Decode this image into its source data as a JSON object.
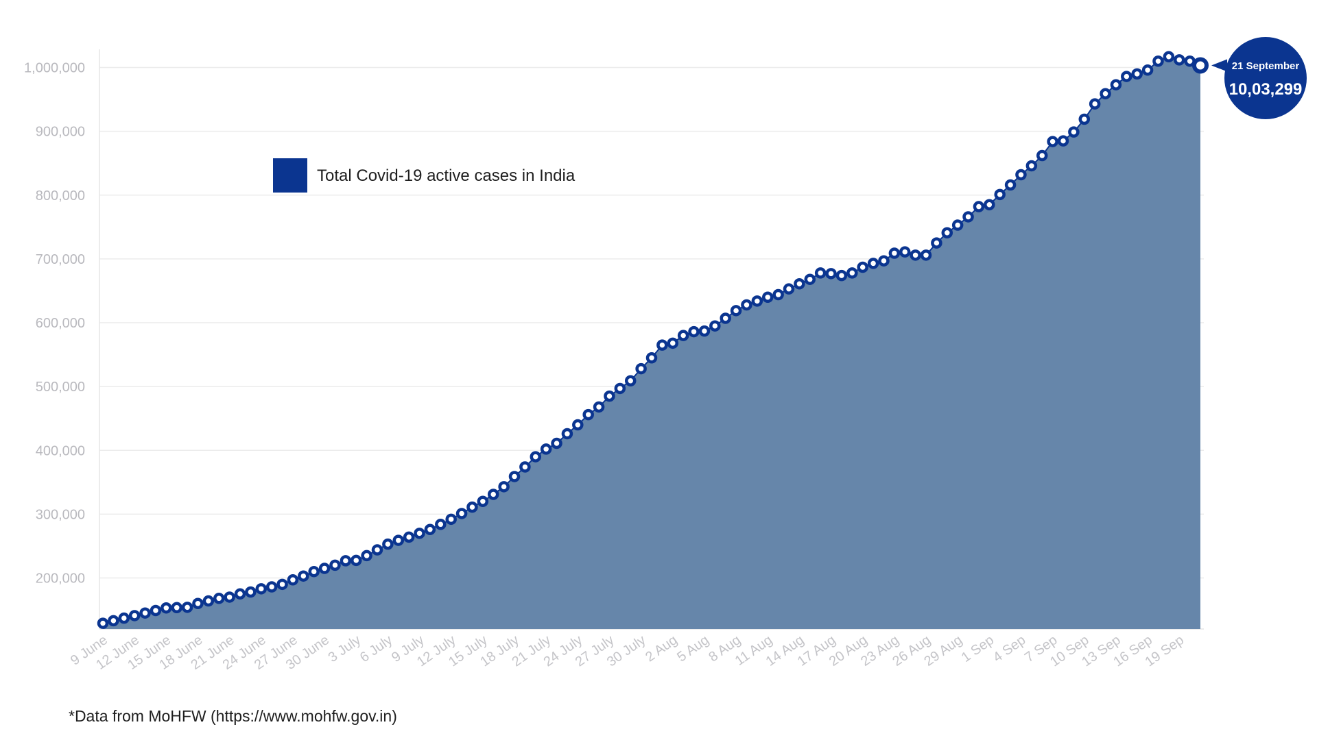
{
  "chart_data": {
    "type": "area",
    "series": [
      {
        "name": "Total Covid-19 active cases in India",
        "color": "#0b3590",
        "fill_color": "#6686aa",
        "x": [
          "9 June",
          "10 June",
          "11 June",
          "12 June",
          "13 June",
          "14 June",
          "15 June",
          "16 June",
          "17 June",
          "18 June",
          "19 June",
          "20 June",
          "21 June",
          "22 June",
          "23 June",
          "24 June",
          "25 June",
          "26 June",
          "27 June",
          "28 June",
          "29 June",
          "30 June",
          "1 July",
          "2 July",
          "3 July",
          "4 July",
          "5 July",
          "6 July",
          "7 July",
          "8 July",
          "9 July",
          "10 July",
          "11 July",
          "12 July",
          "13 July",
          "14 July",
          "15 July",
          "16 July",
          "17 July",
          "18 July",
          "19 July",
          "20 July",
          "21 July",
          "22 July",
          "23 July",
          "24 July",
          "25 July",
          "26 July",
          "27 July",
          "28 July",
          "29 July",
          "30 July",
          "31 July",
          "1 Aug",
          "2 Aug",
          "3 Aug",
          "4 Aug",
          "5 Aug",
          "6 Aug",
          "7 Aug",
          "8 Aug",
          "9 Aug",
          "10 Aug",
          "11 Aug",
          "12 Aug",
          "13 Aug",
          "14 Aug",
          "15 Aug",
          "16 Aug",
          "17 Aug",
          "18 Aug",
          "19 Aug",
          "20 Aug",
          "21 Aug",
          "22 Aug",
          "23 Aug",
          "24 Aug",
          "25 Aug",
          "26 Aug",
          "27 Aug",
          "28 Aug",
          "29 Aug",
          "30 Aug",
          "31 Aug",
          "1 Sep",
          "2 Sep",
          "3 Sep",
          "4 Sep",
          "5 Sep",
          "6 Sep",
          "7 Sep",
          "8 Sep",
          "9 Sep",
          "10 Sep",
          "11 Sep",
          "12 Sep",
          "13 Sep",
          "14 Sep",
          "15 Sep",
          "16 Sep",
          "17 Sep",
          "18 Sep",
          "19 Sep",
          "20 Sep",
          "21 Sep"
        ],
        "values": [
          129000,
          133000,
          137000,
          141000,
          145000,
          149000,
          153000,
          153500,
          154000,
          160000,
          164000,
          168000,
          170000,
          175000,
          178000,
          183000,
          186000,
          190000,
          197000,
          203000,
          210000,
          215000,
          220000,
          227000,
          227500,
          235000,
          244000,
          253000,
          259000,
          264000,
          270000,
          276000,
          284000,
          292000,
          301000,
          311000,
          320000,
          331000,
          343000,
          359000,
          374000,
          390000,
          402000,
          411000,
          426000,
          440000,
          456000,
          468000,
          485000,
          497000,
          509000,
          528000,
          545000,
          565000,
          568000,
          580000,
          586000,
          587000,
          595000,
          607000,
          619000,
          628000,
          634000,
          640000,
          644000,
          653000,
          661000,
          668000,
          678000,
          677000,
          674000,
          678000,
          687000,
          693000,
          697000,
          709000,
          711000,
          706000,
          706000,
          725000,
          741000,
          753000,
          766000,
          782000,
          785000,
          801000,
          816000,
          832000,
          846000,
          862000,
          884000,
          885000,
          899000,
          919000,
          943000,
          959000,
          973000,
          986000,
          990000,
          996000,
          1010000,
          1017000,
          1012000,
          1010000,
          1003299
        ]
      }
    ],
    "ylim": [
      120000,
      1050000
    ],
    "yticks": [
      200000,
      300000,
      400000,
      500000,
      600000,
      700000,
      800000,
      900000,
      1000000
    ],
    "ytick_labels": [
      "200,000",
      "300,000",
      "400,000",
      "500,000",
      "600,000",
      "700,000",
      "800,000",
      "900,000",
      "1,000,000"
    ],
    "xtick_labels": [
      "9 June",
      "12 June",
      "15 June",
      "18 June",
      "21 June",
      "24 June",
      "27 June",
      "30 June",
      "3 July",
      "6 July",
      "9 July",
      "12 July",
      "15 July",
      "18 July",
      "21 July",
      "24 July",
      "27 July",
      "30 July",
      "2 Aug",
      "5 Aug",
      "8 Aug",
      "11 Aug",
      "14 Aug",
      "17 Aug",
      "20 Aug",
      "23 Aug",
      "26 Aug",
      "29 Aug",
      "1 Sep",
      "4 Sep",
      "7 Sep",
      "10 Sep",
      "13 Sep",
      "16 Sep",
      "19 Sep"
    ],
    "xtick_step": 3,
    "grid": true,
    "legend": {
      "label": "Total Covid-19 active cases in India",
      "placement": "top-left"
    },
    "callout": {
      "date": "21 September",
      "value": "10,03,299",
      "color": "#0b3590"
    }
  },
  "source_note": "*Data from MoHFW (https://www.mohfw.gov.in)"
}
